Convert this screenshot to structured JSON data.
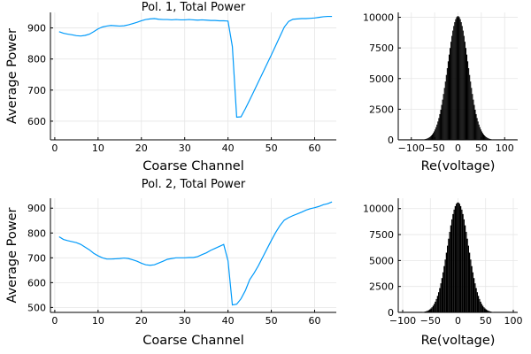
{
  "chart_data": [
    {
      "type": "line",
      "title": "Pol. 1, Total Power",
      "xlabel": "Coarse Channel",
      "ylabel": "Average Power",
      "xlim": [
        -1,
        65
      ],
      "ylim": [
        540,
        950
      ],
      "xticks": [
        0,
        10,
        20,
        30,
        40,
        50,
        60
      ],
      "yticks": [
        600,
        700,
        800,
        900
      ],
      "grid": true,
      "color": "#009AFA",
      "x": [
        1,
        2,
        3,
        4,
        5,
        6,
        7,
        8,
        9,
        10,
        11,
        12,
        13,
        14,
        15,
        16,
        17,
        18,
        19,
        20,
        21,
        22,
        23,
        24,
        25,
        26,
        27,
        28,
        29,
        30,
        31,
        32,
        33,
        34,
        35,
        36,
        37,
        38,
        39,
        40,
        41,
        42,
        43,
        44,
        45,
        46,
        47,
        48,
        49,
        50,
        51,
        52,
        53,
        54,
        55,
        56,
        57,
        58,
        59,
        60,
        61,
        62,
        63,
        64
      ],
      "y": [
        888,
        883,
        880,
        878,
        875,
        874,
        876,
        880,
        888,
        897,
        903,
        906,
        908,
        907,
        906,
        907,
        910,
        914,
        918,
        923,
        927,
        929,
        930,
        928,
        927,
        927,
        926,
        927,
        926,
        926,
        927,
        926,
        925,
        926,
        925,
        924,
        924,
        923,
        923,
        922,
        840,
        613,
        614,
        640,
        668,
        697,
        726,
        755,
        784,
        813,
        843,
        873,
        903,
        921,
        928,
        929,
        930,
        930,
        931,
        932,
        934,
        936,
        937,
        937
      ]
    },
    {
      "type": "bar",
      "title": "",
      "xlabel": "Re(voltage)",
      "ylabel": "",
      "xlim": [
        -128,
        128
      ],
      "ylim": [
        0,
        10400
      ],
      "xticks": [
        -100,
        -50,
        0,
        50,
        100
      ],
      "yticks": [
        0,
        2500,
        5000,
        7500,
        10000
      ],
      "grid": true,
      "color": "#000000",
      "distribution": "gaussian",
      "peak": 10100,
      "center": 0,
      "sigma": 22
    },
    {
      "type": "line",
      "title": "Pol. 2, Total Power",
      "xlabel": "Coarse Channel",
      "ylabel": "Average Power",
      "xlim": [
        -1,
        65
      ],
      "ylim": [
        480,
        940
      ],
      "xticks": [
        0,
        10,
        20,
        30,
        40,
        50,
        60
      ],
      "yticks": [
        500,
        600,
        700,
        800,
        900
      ],
      "grid": true,
      "color": "#009AFA",
      "x": [
        1,
        2,
        3,
        4,
        5,
        6,
        7,
        8,
        9,
        10,
        11,
        12,
        13,
        14,
        15,
        16,
        17,
        18,
        19,
        20,
        21,
        22,
        23,
        24,
        25,
        26,
        27,
        28,
        29,
        30,
        31,
        32,
        33,
        34,
        35,
        36,
        37,
        38,
        39,
        40,
        41,
        42,
        43,
        44,
        45,
        46,
        47,
        48,
        49,
        50,
        51,
        52,
        53,
        54,
        55,
        56,
        57,
        58,
        59,
        60,
        61,
        62,
        63,
        64
      ],
      "y": [
        785,
        774,
        769,
        765,
        761,
        754,
        743,
        732,
        718,
        708,
        700,
        695,
        695,
        696,
        697,
        699,
        697,
        692,
        686,
        678,
        672,
        670,
        672,
        679,
        686,
        694,
        697,
        700,
        700,
        700,
        701,
        701,
        705,
        713,
        720,
        730,
        738,
        746,
        754,
        688,
        510,
        513,
        535,
        568,
        612,
        638,
        668,
        702,
        736,
        770,
        802,
        830,
        852,
        862,
        870,
        877,
        884,
        892,
        898,
        902,
        907,
        914,
        918,
        925
      ]
    },
    {
      "type": "bar",
      "title": "",
      "xlabel": "Re(voltage)",
      "ylabel": "",
      "xlim": [
        -108,
        108
      ],
      "ylim": [
        0,
        11000
      ],
      "xticks": [
        -100,
        -50,
        0,
        50,
        100
      ],
      "yticks": [
        0,
        2500,
        5000,
        7500,
        10000
      ],
      "grid": true,
      "color": "#000000",
      "distribution": "gaussian",
      "peak": 10600,
      "center": 0,
      "sigma": 19
    }
  ]
}
